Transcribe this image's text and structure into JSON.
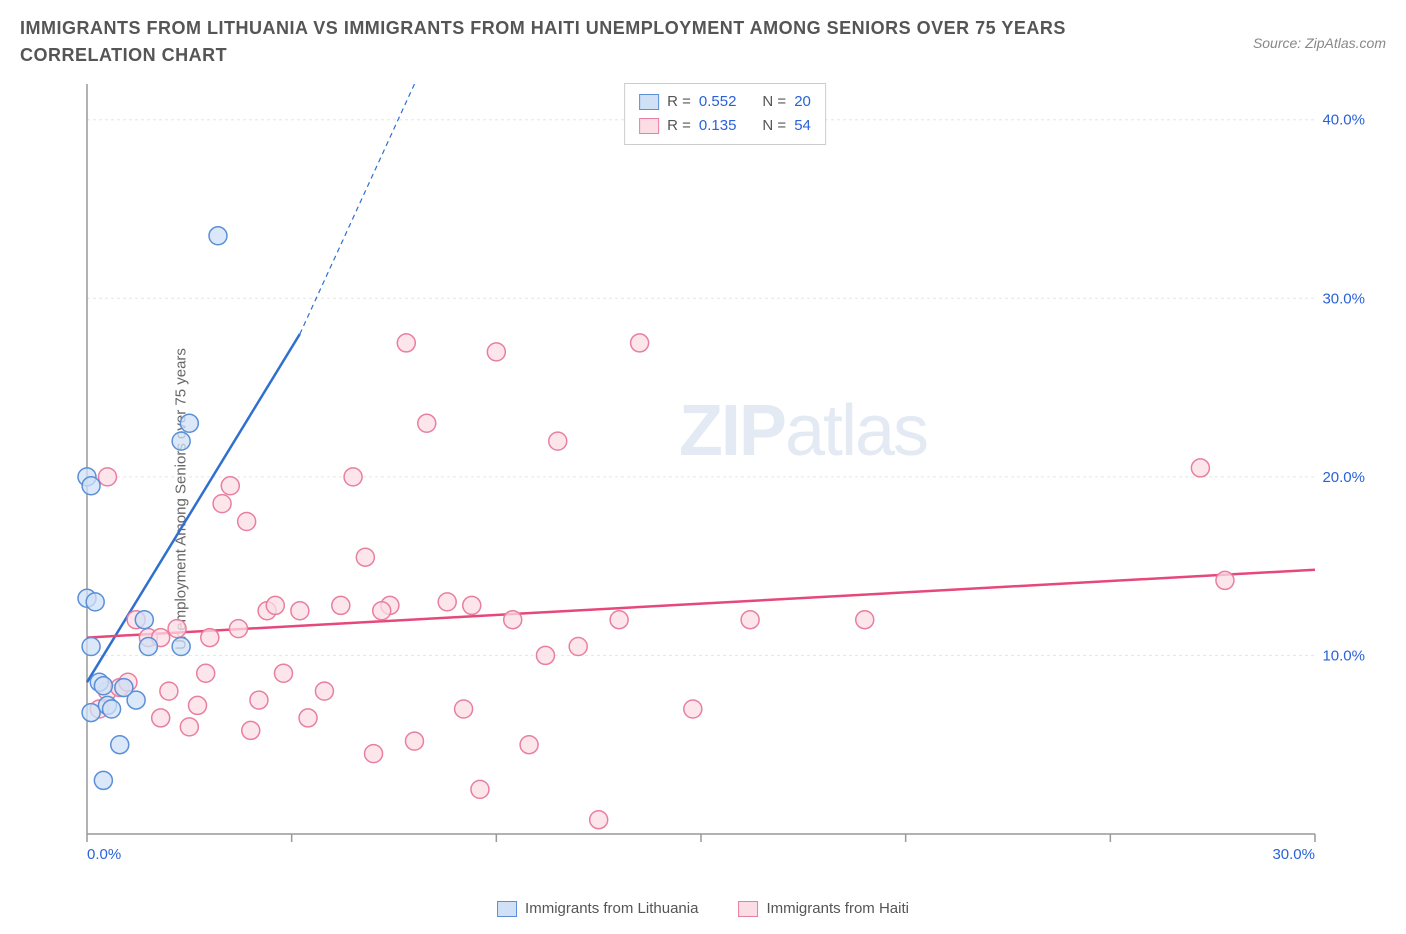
{
  "title": "IMMIGRANTS FROM LITHUANIA VS IMMIGRANTS FROM HAITI UNEMPLOYMENT AMONG SENIORS OVER 75 YEARS CORRELATION CHART",
  "source": "Source: ZipAtlas.com",
  "ylabel": "Unemployment Among Seniors over 75 years",
  "watermark_bold": "ZIP",
  "watermark_light": "atlas",
  "chart": {
    "type": "scatter",
    "xlim": [
      0,
      30
    ],
    "ylim": [
      0,
      42
    ],
    "xtick_step": 5,
    "yticks": [
      10,
      20,
      30,
      40
    ],
    "xtick_label_0": "0.0%",
    "xtick_label_30": "30.0%",
    "ytick_labels": [
      "10.0%",
      "20.0%",
      "30.0%",
      "40.0%"
    ],
    "grid_color": "#e5e5e5",
    "axis_color": "#999999",
    "background_color": "#ffffff",
    "label_color": "#2962d9",
    "marker_radius": 9,
    "marker_stroke_width": 1.5,
    "trend_line_width": 2.5,
    "dash_pattern": "5,4",
    "series": [
      {
        "name": "Immigrants from Lithuania",
        "fill": "#cfe0f7",
        "stroke": "#5b8fd6",
        "line_color": "#2f6fd0",
        "R": "0.552",
        "N": "20",
        "trend": {
          "x1": 0,
          "y1": 8.5,
          "x2": 5.2,
          "y2": 28,
          "dash_x2": 8.0,
          "dash_y2": 42
        },
        "points": [
          [
            0.0,
            20.0
          ],
          [
            0.1,
            19.5
          ],
          [
            0.0,
            13.2
          ],
          [
            0.2,
            13.0
          ],
          [
            0.1,
            10.5
          ],
          [
            0.3,
            8.5
          ],
          [
            0.4,
            8.3
          ],
          [
            0.1,
            6.8
          ],
          [
            0.5,
            7.2
          ],
          [
            0.6,
            7.0
          ],
          [
            0.8,
            5.0
          ],
          [
            0.4,
            3.0
          ],
          [
            1.2,
            7.5
          ],
          [
            1.5,
            10.5
          ],
          [
            1.4,
            12.0
          ],
          [
            2.3,
            10.5
          ],
          [
            2.3,
            22.0
          ],
          [
            2.5,
            23.0
          ],
          [
            3.2,
            33.5
          ],
          [
            0.9,
            8.2
          ]
        ]
      },
      {
        "name": "Immigrants from Haiti",
        "fill": "#fbdde5",
        "stroke": "#e97fa0",
        "line_color": "#e6487a",
        "R": "0.135",
        "N": "54",
        "trend": {
          "x1": 0,
          "y1": 11.0,
          "x2": 30,
          "y2": 14.8
        },
        "points": [
          [
            0.3,
            7.0
          ],
          [
            0.5,
            8.0
          ],
          [
            0.5,
            20.0
          ],
          [
            0.8,
            8.2
          ],
          [
            1.0,
            8.5
          ],
          [
            1.2,
            12.0
          ],
          [
            1.5,
            11.0
          ],
          [
            1.8,
            6.5
          ],
          [
            1.8,
            11.0
          ],
          [
            2.0,
            8.0
          ],
          [
            2.2,
            11.5
          ],
          [
            2.5,
            6.0
          ],
          [
            2.7,
            7.2
          ],
          [
            2.9,
            9.0
          ],
          [
            3.0,
            11.0
          ],
          [
            3.3,
            18.5
          ],
          [
            3.5,
            19.5
          ],
          [
            3.7,
            11.5
          ],
          [
            3.9,
            17.5
          ],
          [
            4.0,
            5.8
          ],
          [
            4.2,
            7.5
          ],
          [
            4.4,
            12.5
          ],
          [
            4.6,
            12.8
          ],
          [
            4.8,
            9.0
          ],
          [
            5.2,
            12.5
          ],
          [
            5.4,
            6.5
          ],
          [
            5.8,
            8.0
          ],
          [
            6.2,
            12.8
          ],
          [
            6.5,
            20.0
          ],
          [
            6.8,
            15.5
          ],
          [
            7.0,
            4.5
          ],
          [
            7.4,
            12.8
          ],
          [
            7.8,
            27.5
          ],
          [
            8.0,
            5.2
          ],
          [
            8.3,
            23.0
          ],
          [
            8.8,
            13.0
          ],
          [
            9.2,
            7.0
          ],
          [
            9.4,
            12.8
          ],
          [
            9.6,
            2.5
          ],
          [
            10.0,
            27.0
          ],
          [
            10.4,
            12.0
          ],
          [
            10.8,
            5.0
          ],
          [
            11.2,
            10.0
          ],
          [
            11.5,
            22.0
          ],
          [
            12.0,
            10.5
          ],
          [
            12.5,
            0.8
          ],
          [
            13.0,
            12.0
          ],
          [
            13.5,
            27.5
          ],
          [
            14.8,
            7.0
          ],
          [
            16.2,
            12.0
          ],
          [
            19.0,
            12.0
          ],
          [
            27.2,
            20.5
          ],
          [
            27.8,
            14.2
          ],
          [
            7.2,
            12.5
          ]
        ]
      }
    ]
  },
  "legend_labels": {
    "r_prefix": "R =",
    "n_prefix": "N ="
  }
}
